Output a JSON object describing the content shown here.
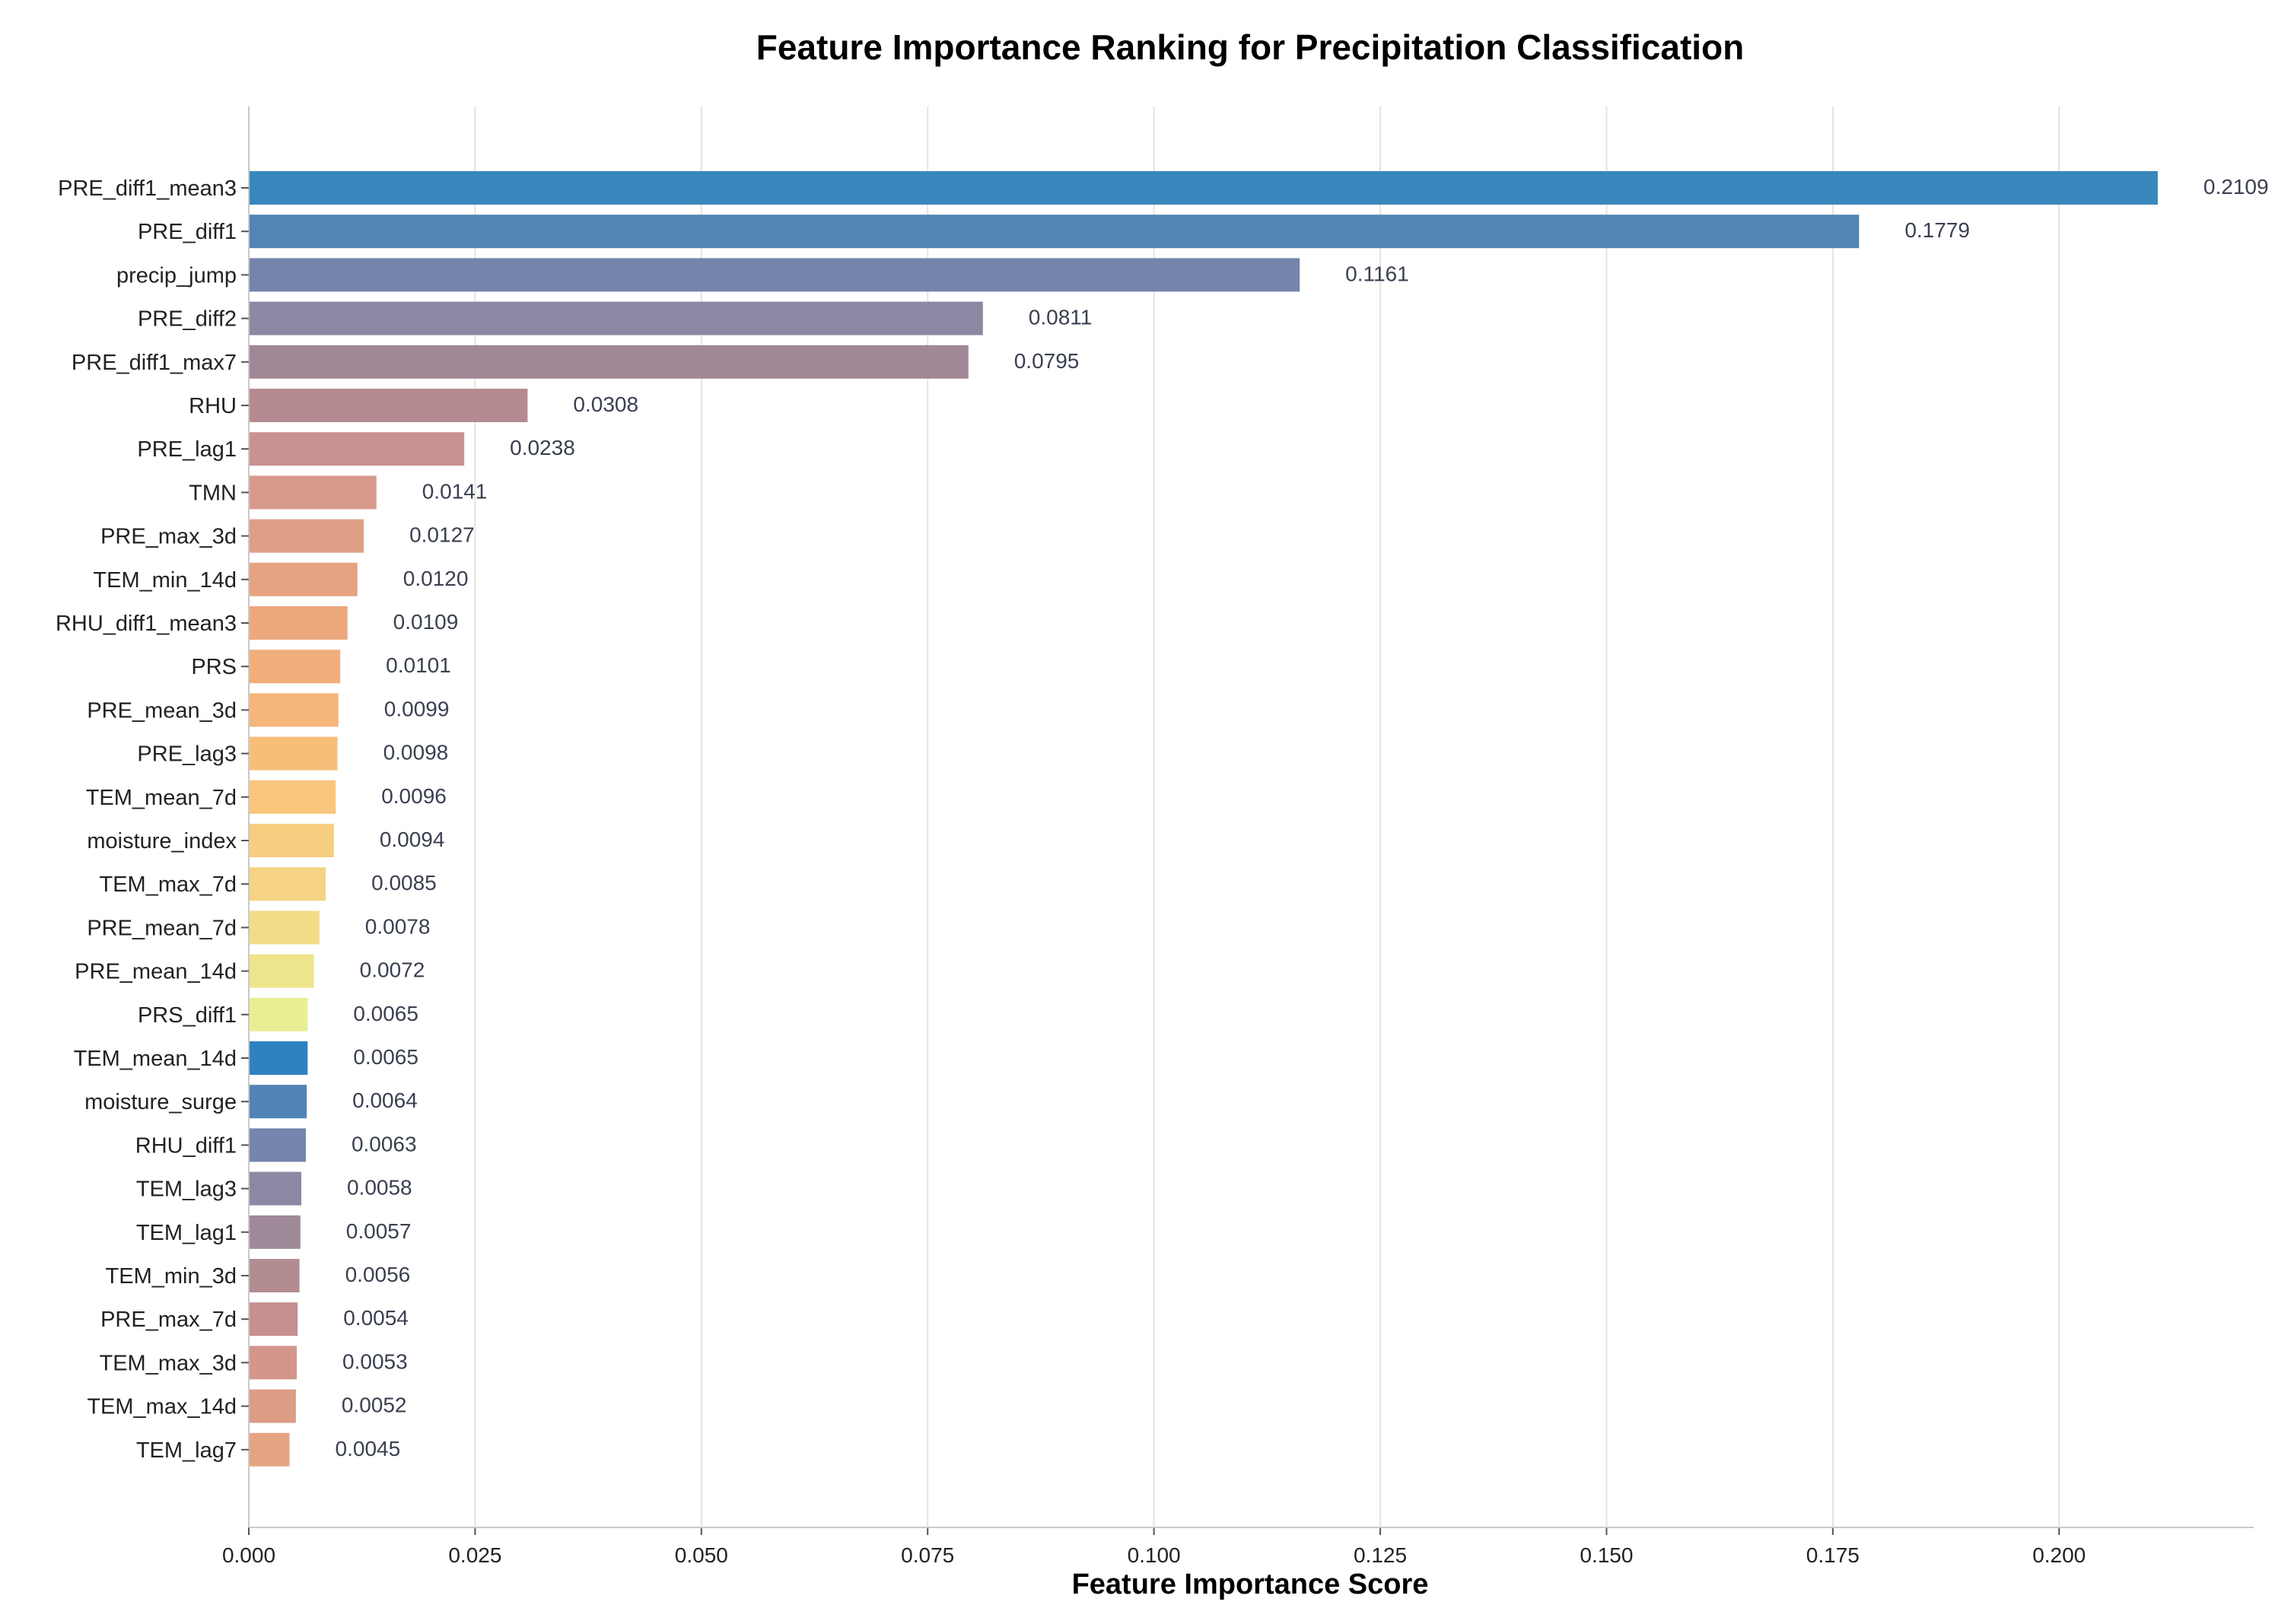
{
  "chart_data": {
    "type": "bar",
    "orientation": "horizontal",
    "title": "Feature Importance Ranking for Precipitation Classification",
    "xlabel": "Feature Importance Score",
    "ylabel": "",
    "xlim": [
      0,
      0.2215
    ],
    "xticks": [
      "0.000",
      "0.025",
      "0.050",
      "0.075",
      "0.100",
      "0.125",
      "0.150",
      "0.175",
      "0.200"
    ],
    "grid": "vertical",
    "categories": [
      "PRE_diff1_mean3",
      "PRE_diff1",
      "precip_jump",
      "PRE_diff2",
      "PRE_diff1_max7",
      "RHU",
      "PRE_lag1",
      "TMN",
      "PRE_max_3d",
      "TEM_min_14d",
      "RHU_diff1_mean3",
      "PRS",
      "PRE_mean_3d",
      "PRE_lag3",
      "TEM_mean_7d",
      "moisture_index",
      "TEM_max_7d",
      "PRE_mean_7d",
      "PRE_mean_14d",
      "PRS_diff1",
      "TEM_mean_14d",
      "moisture_surge",
      "RHU_diff1",
      "TEM_lag3",
      "TEM_lag1",
      "TEM_min_3d",
      "PRE_max_7d",
      "TEM_max_3d",
      "TEM_max_14d",
      "TEM_lag7"
    ],
    "values": [
      0.2109,
      0.1779,
      0.1161,
      0.0811,
      0.0795,
      0.0308,
      0.0238,
      0.0141,
      0.0127,
      0.012,
      0.0109,
      0.0101,
      0.0099,
      0.0098,
      0.0096,
      0.0094,
      0.0085,
      0.0078,
      0.0072,
      0.0065,
      0.0065,
      0.0064,
      0.0063,
      0.0058,
      0.0057,
      0.0056,
      0.0054,
      0.0053,
      0.0052,
      0.0045
    ],
    "value_labels": [
      "0.2109",
      "0.1779",
      "0.1161",
      "0.0811",
      "0.0795",
      "0.0308",
      "0.0238",
      "0.0141",
      "0.0127",
      "0.0120",
      "0.0109",
      "0.0101",
      "0.0099",
      "0.0098",
      "0.0096",
      "0.0094",
      "0.0085",
      "0.0078",
      "0.0072",
      "0.0065",
      "0.0065",
      "0.0064",
      "0.0063",
      "0.0058",
      "0.0057",
      "0.0056",
      "0.0054",
      "0.0053",
      "0.0052",
      "0.0045"
    ],
    "colors": [
      "#3a87bd",
      "#5186b3",
      "#7484ac",
      "#8c88a3",
      "#a08897",
      "#b58b91",
      "#c89290",
      "#d7998c",
      "#df9e86",
      "#e5a381",
      "#eca87c",
      "#f1ad7a",
      "#f5b679",
      "#f7be7a",
      "#f8c67c",
      "#f7cd7f",
      "#f6d283",
      "#f3dc87",
      "#eee48b",
      "#e8ef92",
      "#2f82c0",
      "#4f84b4",
      "#7485ae",
      "#8b88a4",
      "#a08a9a",
      "#b38c92",
      "#c5908f",
      "#d3968c",
      "#dd9c86",
      "#e5a481"
    ]
  }
}
